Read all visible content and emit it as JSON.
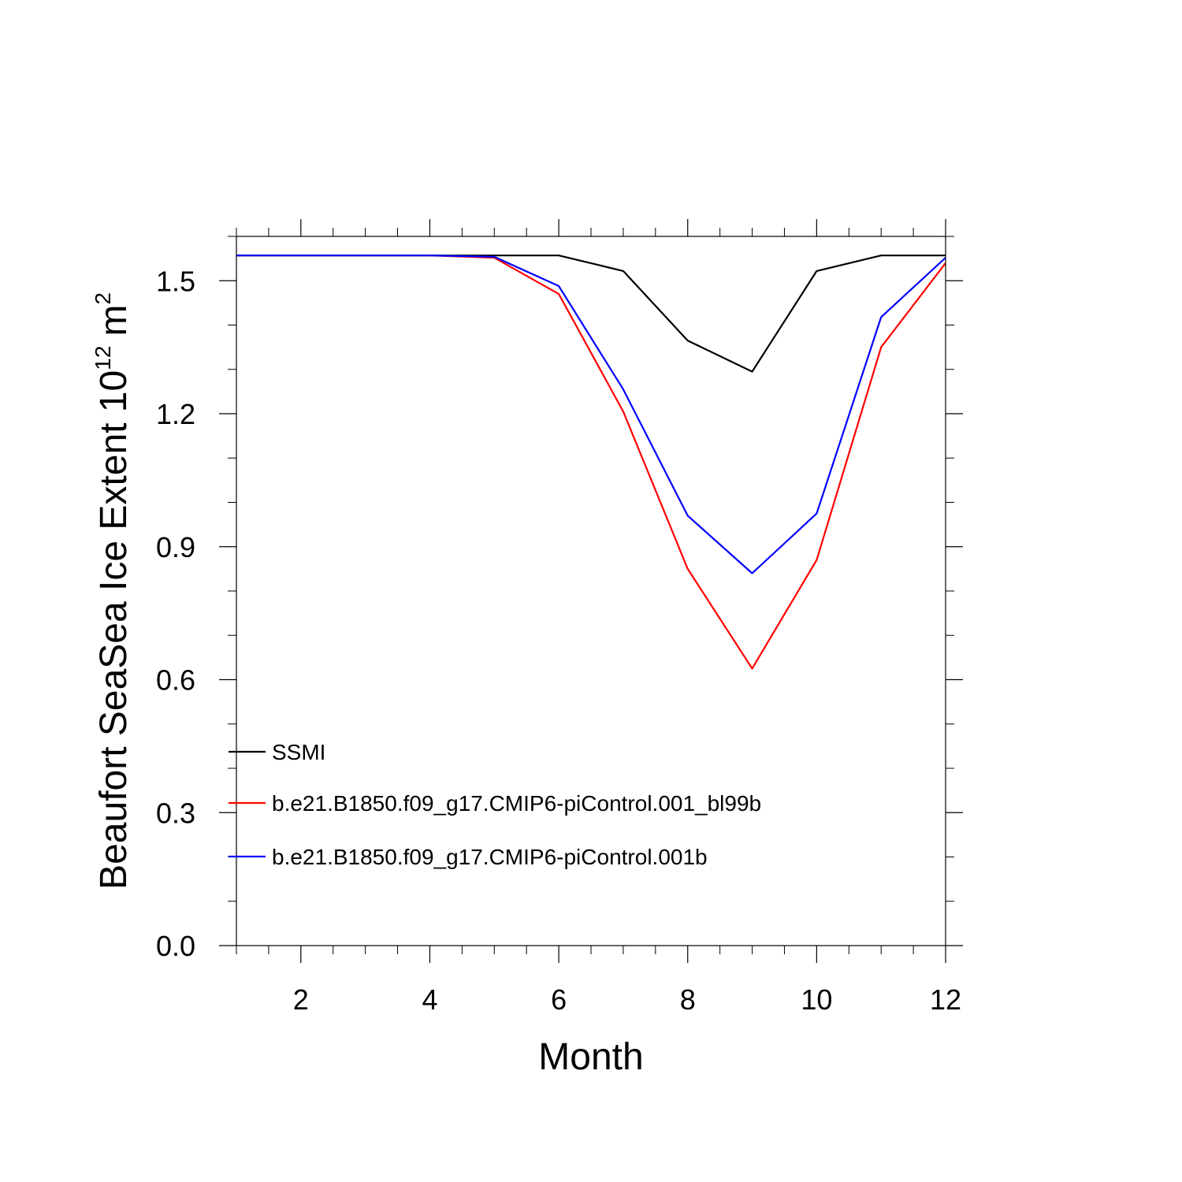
{
  "chart_data": {
    "type": "line",
    "xlabel": "Month",
    "ylabel": "Beaufort SeaSea Ice Extent 10",
    "ylabel_sup": "12",
    "ylabel_unit": "m",
    "ylabel_unit_sup": "2",
    "xlim": [
      1,
      12
    ],
    "ylim": [
      0.0,
      1.6
    ],
    "x_ticks": [
      2,
      4,
      6,
      8,
      10,
      12
    ],
    "x_tick_labels": [
      "2",
      "4",
      "6",
      "8",
      "10",
      "12"
    ],
    "y_ticks": [
      0.0,
      0.3,
      0.6,
      0.9,
      1.2,
      1.5
    ],
    "y_tick_labels": [
      "0.0",
      "0.3",
      "0.6",
      "0.9",
      "1.2",
      "1.5"
    ],
    "grid": false,
    "legend_position": "bottom-left",
    "x": [
      1,
      2,
      3,
      4,
      5,
      6,
      7,
      8,
      9,
      10,
      11,
      12
    ],
    "series": [
      {
        "name": "SSMI",
        "color": "#000000",
        "values": [
          1.557,
          1.557,
          1.557,
          1.557,
          1.557,
          1.557,
          1.522,
          1.365,
          1.295,
          1.522,
          1.557,
          1.557
        ]
      },
      {
        "name": "b.e21.B1850.f09_g17.CMIP6-piControl.001_bl99b",
        "color": "#ff0000",
        "values": [
          1.557,
          1.557,
          1.557,
          1.557,
          1.552,
          1.47,
          1.205,
          0.85,
          0.625,
          0.87,
          1.35,
          1.54
        ]
      },
      {
        "name": "b.e21.B1850.f09_g17.CMIP6-piControl.001b",
        "color": "#0000ff",
        "values": [
          1.557,
          1.557,
          1.557,
          1.557,
          1.554,
          1.488,
          1.255,
          0.97,
          0.84,
          0.975,
          1.418,
          1.552
        ]
      }
    ]
  }
}
